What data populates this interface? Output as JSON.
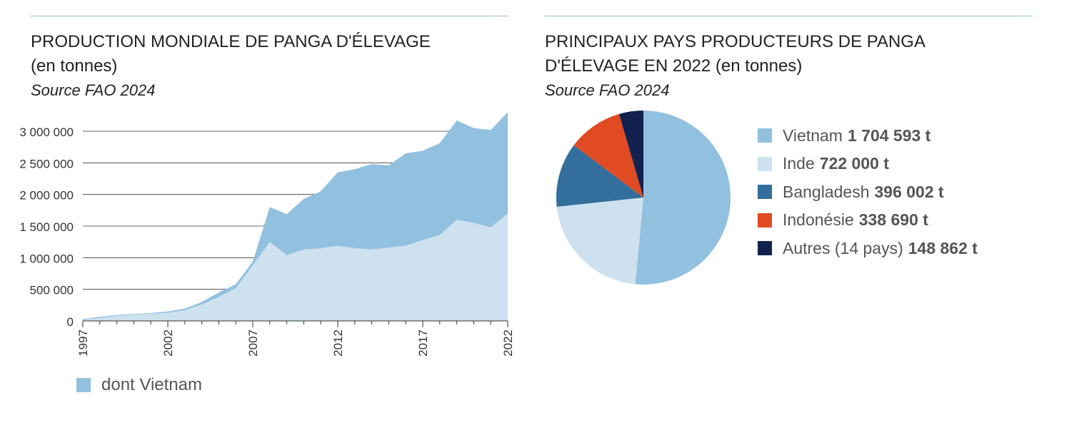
{
  "colors": {
    "world": "#92c0df",
    "vietnam": "#cde1ef",
    "rule": "#8ec3bf"
  },
  "left": {
    "title_line1": "PRODUCTION MONDIALE DE PANGA D'ÉLEVAGE",
    "title_line2": "(en tonnes)",
    "source": "Source FAO 2024",
    "legend_label": "dont Vietnam"
  },
  "right": {
    "title_line1": "PRINCIPAUX PAYS PRODUCTEURS DE PANGA",
    "title_line2": "D'ÉLEVAGE EN 2022 (en tonnes)",
    "source": "Source FAO 2024"
  },
  "chart_data": [
    {
      "type": "area",
      "title": "PRODUCTION MONDIALE DE PANGA D'ÉLEVAGE (en tonnes)",
      "x": [
        1997,
        1998,
        1999,
        2000,
        2001,
        2002,
        2003,
        2004,
        2005,
        2006,
        2007,
        2008,
        2009,
        2010,
        2011,
        2012,
        2013,
        2014,
        2015,
        2016,
        2017,
        2018,
        2019,
        2020,
        2021,
        2022
      ],
      "xticks": [
        "1997",
        "2002",
        "2007",
        "2012",
        "2017",
        "2022"
      ],
      "yticks": [
        {
          "value": 0,
          "label": "0"
        },
        {
          "value": 500000,
          "label": "500 000"
        },
        {
          "value": 1000000,
          "label": "1 000 000"
        },
        {
          "value": 1500000,
          "label": "1 500 000"
        },
        {
          "value": 2000000,
          "label": "2 000 000"
        },
        {
          "value": 2500000,
          "label": "2 500 000"
        },
        {
          "value": 3000000,
          "label": "3 000 000"
        }
      ],
      "ylim": [
        0,
        3300000
      ],
      "series": [
        {
          "values": [
            30000,
            65000,
            95000,
            110000,
            125000,
            150000,
            195000,
            300000,
            450000,
            580000,
            940000,
            1800000,
            1690000,
            1930000,
            2050000,
            2350000,
            2400000,
            2480000,
            2460000,
            2650000,
            2690000,
            2810000,
            3170000,
            3050000,
            3020000,
            3300000
          ]
        },
        {
          "name": "dont Vietnam",
          "values": [
            20000,
            50000,
            80000,
            100000,
            115000,
            130000,
            170000,
            260000,
            380000,
            520000,
            880000,
            1250000,
            1040000,
            1130000,
            1150000,
            1190000,
            1150000,
            1130000,
            1160000,
            1190000,
            1280000,
            1360000,
            1600000,
            1550000,
            1480000,
            1700000
          ]
        }
      ]
    },
    {
      "type": "pie",
      "title": "PRINCIPAUX PAYS PRODUCTEURS DE PANGA D'ÉLEVAGE EN 2022 (en tonnes)",
      "slices": [
        {
          "label": "Vietnam",
          "value": 1704593,
          "display": "1 704 593 t",
          "color": "#92c0df"
        },
        {
          "label": "Inde",
          "value": 722000,
          "display": "722 000 t",
          "color": "#cde1ef"
        },
        {
          "label": "Bangladesh",
          "value": 396002,
          "display": "396 002 t",
          "color": "#336e9c"
        },
        {
          "label": "Indonésie",
          "value": 338690,
          "display": "338 690 t",
          "color": "#e04b24"
        },
        {
          "label": "Autres (14 pays)",
          "value": 148862,
          "display": "148 862 t",
          "color": "#13214e"
        }
      ]
    }
  ]
}
